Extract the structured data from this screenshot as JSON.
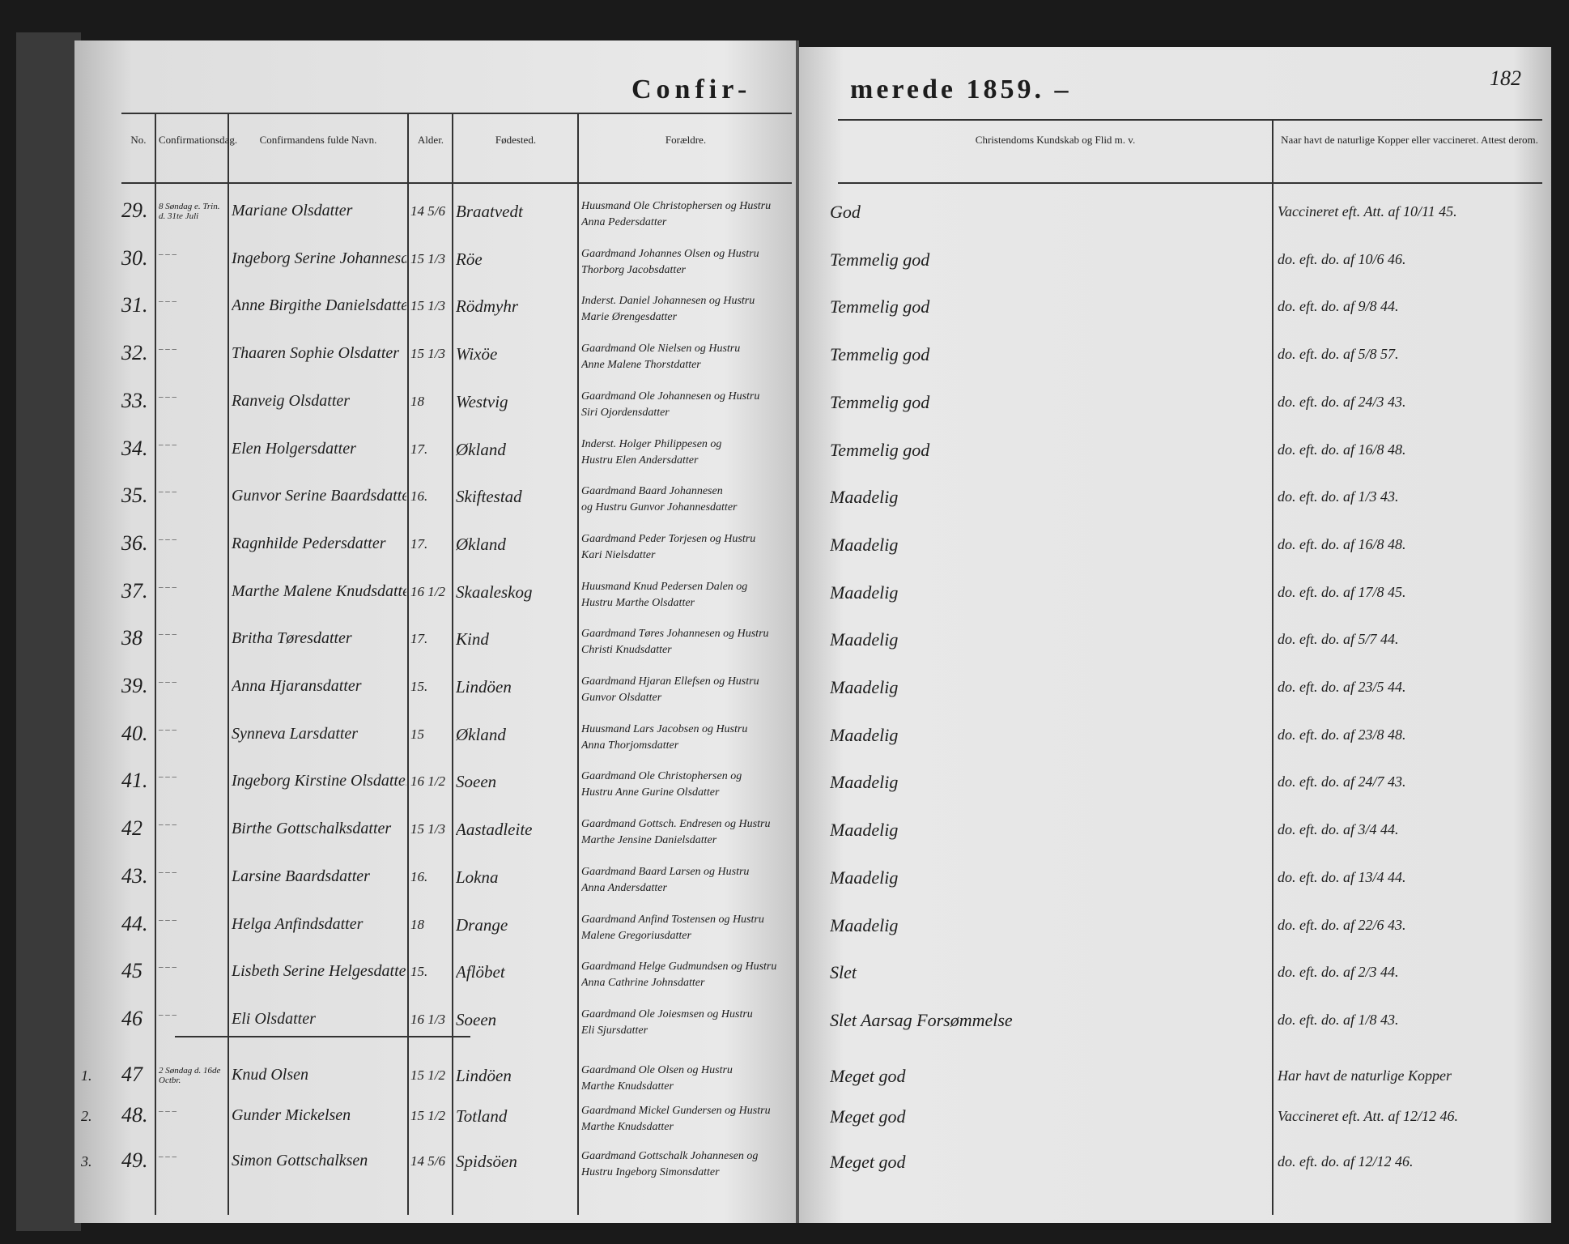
{
  "header": {
    "title_left": "Confir-",
    "title_right": "merede 1859. –",
    "page_number": "182"
  },
  "columns": {
    "no": "No.",
    "date": "Confirmationsdag.",
    "name": "Confirmandens fulde Navn.",
    "age": "Alder.",
    "birthplace": "Fødested.",
    "parents": "Forældre.",
    "knowledge": "Christendoms Kundskab og Flid m. v.",
    "vaccination": "Naar havt de naturlige Kopper eller vaccineret. Attest derom."
  },
  "rows": [
    {
      "no": "29.",
      "date": "8 Søndag e. Trin. d. 31te Juli",
      "name": "Mariane Olsdatter",
      "age": "14 5/6",
      "birthplace": "Braatvedt",
      "parents": [
        "Huusmand Ole Christophersen og Hustru",
        "Anna Pedersdatter"
      ],
      "knowledge": "God",
      "vaccination": "Vaccineret eft. Att. af 10/11 45."
    },
    {
      "no": "30.",
      "date": "– – –",
      "name": "Ingeborg Serine Johannesdatter",
      "age": "15 1/3",
      "birthplace": "Röe",
      "parents": [
        "Gaardmand Johannes Olsen og Hustru",
        "Thorborg Jacobsdatter"
      ],
      "knowledge": "Temmelig god",
      "vaccination": "do. eft. do. af 10/6 46."
    },
    {
      "no": "31.",
      "date": "– – –",
      "name": "Anne Birgithe Danielsdatter",
      "age": "15 1/3",
      "birthplace": "Rödmyhr",
      "parents": [
        "Inderst. Daniel Johannesen og Hustru",
        "Marie Ørengesdatter"
      ],
      "knowledge": "Temmelig god",
      "vaccination": "do. eft. do. af 9/8 44."
    },
    {
      "no": "32.",
      "date": "– – –",
      "name": "Thaaren Sophie Olsdatter",
      "age": "15 1/3",
      "birthplace": "Wixöe",
      "parents": [
        "Gaardmand Ole Nielsen og Hustru",
        "Anne Malene Thorstdatter"
      ],
      "knowledge": "Temmelig god",
      "vaccination": "do. eft. do. af 5/8 57."
    },
    {
      "no": "33.",
      "date": "– – –",
      "name": "Ranveig Olsdatter",
      "age": "18",
      "birthplace": "Westvig",
      "parents": [
        "Gaardmand Ole Johannesen og Hustru",
        "Siri Ojordensdatter"
      ],
      "knowledge": "Temmelig god",
      "vaccination": "do. eft. do. af 24/3 43."
    },
    {
      "no": "34.",
      "date": "– – –",
      "name": "Elen Holgersdatter",
      "age": "17.",
      "birthplace": "Økland",
      "parents": [
        "Inderst. Holger Philippesen og",
        "Hustru Elen Andersdatter"
      ],
      "knowledge": "Temmelig god",
      "vaccination": "do. eft. do. af 16/8 48."
    },
    {
      "no": "35.",
      "date": "– – –",
      "name": "Gunvor Serine Baardsdatter",
      "age": "16.",
      "birthplace": "Skiftestad",
      "parents": [
        "Gaardmand Baard Johannesen",
        "og Hustru Gunvor Johannesdatter"
      ],
      "knowledge": "Maadelig",
      "vaccination": "do. eft. do. af 1/3 43."
    },
    {
      "no": "36.",
      "date": "– – –",
      "name": "Ragnhilde Pedersdatter",
      "age": "17.",
      "birthplace": "Økland",
      "parents": [
        "Gaardmand Peder Torjesen og Hustru",
        "Kari Nielsdatter"
      ],
      "knowledge": "Maadelig",
      "vaccination": "do. eft. do. af 16/8 48."
    },
    {
      "no": "37.",
      "date": "– – –",
      "name": "Marthe Malene Knudsdatter",
      "age": "16 1/2",
      "birthplace": "Skaaleskog",
      "parents": [
        "Huusmand Knud Pedersen Dalen og",
        "Hustru Marthe Olsdatter"
      ],
      "knowledge": "Maadelig",
      "vaccination": "do. eft. do. af 17/8 45."
    },
    {
      "no": "38",
      "date": "– – –",
      "name": "Britha Tøresdatter",
      "age": "17.",
      "birthplace": "Kind",
      "parents": [
        "Gaardmand Tøres Johannesen og Hustru",
        "Christi Knudsdatter"
      ],
      "knowledge": "Maadelig",
      "vaccination": "do. eft. do. af 5/7 44."
    },
    {
      "no": "39.",
      "date": "– – –",
      "name": "Anna Hjaransdatter",
      "age": "15.",
      "birthplace": "Lindöen",
      "parents": [
        "Gaardmand Hjaran Ellefsen og Hustru",
        "Gunvor Olsdatter"
      ],
      "knowledge": "Maadelig",
      "vaccination": "do. eft. do. af 23/5 44."
    },
    {
      "no": "40.",
      "date": "– – –",
      "name": "Synneva Larsdatter",
      "age": "15",
      "birthplace": "Økland",
      "parents": [
        "Huusmand Lars Jacobsen og Hustru",
        "Anna Thorjomsdatter"
      ],
      "knowledge": "Maadelig",
      "vaccination": "do. eft. do. af 23/8 48."
    },
    {
      "no": "41.",
      "date": "– – –",
      "name": "Ingeborg Kirstine Olsdatter",
      "age": "16 1/2",
      "birthplace": "Soeen",
      "parents": [
        "Gaardmand Ole Christophersen og",
        "Hustru Anne Gurine Olsdatter"
      ],
      "knowledge": "Maadelig",
      "vaccination": "do. eft. do. af 24/7 43."
    },
    {
      "no": "42",
      "date": "– – –",
      "name": "Birthe Gottschalksdatter",
      "age": "15 1/3",
      "birthplace": "Aastadleite",
      "parents": [
        "Gaardmand Gottsch. Endresen og Hustru",
        "Marthe Jensine Danielsdatter"
      ],
      "knowledge": "Maadelig",
      "vaccination": "do. eft. do. af 3/4 44."
    },
    {
      "no": "43.",
      "date": "– – –",
      "name": "Larsine Baardsdatter",
      "age": "16.",
      "birthplace": "Lokna",
      "parents": [
        "Gaardmand Baard Larsen og Hustru",
        "Anna Andersdatter"
      ],
      "knowledge": "Maadelig",
      "vaccination": "do. eft. do. af 13/4 44."
    },
    {
      "no": "44.",
      "date": "– – –",
      "name": "Helga Anfindsdatter",
      "age": "18",
      "birthplace": "Drange",
      "parents": [
        "Gaardmand Anfind Tostensen og Hustru",
        "Malene Gregoriusdatter"
      ],
      "knowledge": "Maadelig",
      "vaccination": "do. eft. do. af 22/6 43."
    },
    {
      "no": "45",
      "date": "– – –",
      "name": "Lisbeth Serine Helgesdatter",
      "age": "15.",
      "birthplace": "Aflöbet",
      "parents": [
        "Gaardmand Helge Gudmundsen og Hustru",
        "Anna Cathrine Johnsdatter"
      ],
      "knowledge": "Slet",
      "vaccination": "do. eft. do. af 2/3 44."
    },
    {
      "no": "46",
      "date": "– – –",
      "name": "Eli Olsdatter",
      "age": "16 1/3",
      "birthplace": "Soeen",
      "parents": [
        "Gaardmand Ole Joiesmsen og Hustru",
        "Eli Sjursdatter"
      ],
      "knowledge": "Slet Aarsag Forsømmelse",
      "vaccination": "do. eft. do. af 1/8 43."
    },
    {
      "margin": "1.",
      "no": "47",
      "date": "2 Søndag d. 16de Octbr.",
      "name": "Knud Olsen",
      "age": "15 1/2",
      "birthplace": "Lindöen",
      "parents": [
        "Gaardmand Ole Olsen og Hustru",
        "Marthe Knudsdatter"
      ],
      "knowledge": "Meget god",
      "vaccination": "Har havt de naturlige Kopper"
    },
    {
      "margin": "2.",
      "no": "48.",
      "date": "– – –",
      "name": "Gunder Mickelsen",
      "age": "15 1/2",
      "birthplace": "Totland",
      "parents": [
        "Gaardmand Mickel Gundersen og Hustru",
        "Marthe Knudsdatter"
      ],
      "knowledge": "Meget god",
      "vaccination": "Vaccineret eft. Att. af 12/12 46."
    },
    {
      "margin": "3.",
      "no": "49.",
      "date": "– – –",
      "name": "Simon Gottschalksen",
      "age": "14 5/6",
      "birthplace": "Spidsöen",
      "parents": [
        "Gaardmand Gottschalk Johannesen og",
        "Hustru Ingeborg Simonsdatter"
      ],
      "knowledge": "Meget god",
      "vaccination": "do. eft. do. af 12/12 46."
    }
  ]
}
